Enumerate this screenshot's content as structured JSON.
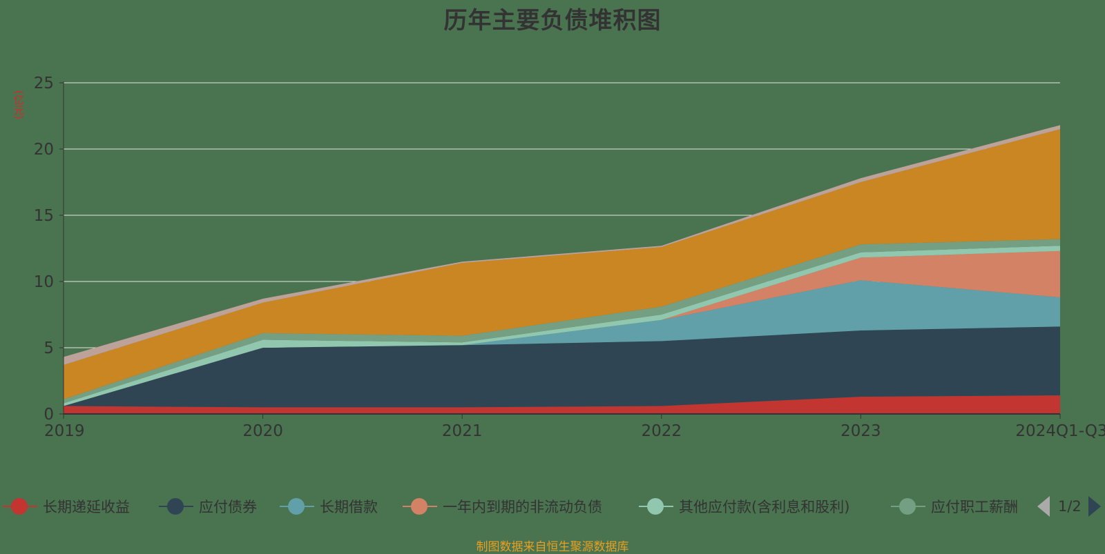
{
  "chart_data": {
    "type": "area",
    "stacked": true,
    "title": "历年主要负债堆积图",
    "ylabel": "(亿元)",
    "categories": [
      "2019",
      "2020",
      "2021",
      "2022",
      "2023",
      "2024Q1-Q3"
    ],
    "ylim": [
      0,
      25
    ],
    "yticks": [
      0,
      5,
      10,
      15,
      20,
      25
    ],
    "grid": true,
    "legend_position": "bottom",
    "series": [
      {
        "name": "长期递延收益",
        "color": "#c23531",
        "values": [
          0.6,
          0.5,
          0.5,
          0.6,
          1.3,
          1.4
        ]
      },
      {
        "name": "应付债券",
        "color": "#2f4554",
        "values": [
          0.0,
          4.5,
          4.7,
          4.9,
          5.0,
          5.2
        ]
      },
      {
        "name": "长期借款",
        "color": "#61a0a8",
        "values": [
          0.0,
          0.0,
          0.0,
          1.6,
          3.8,
          2.2
        ]
      },
      {
        "name": "一年内到期的非流动负债",
        "color": "#d48265",
        "values": [
          0.0,
          0.0,
          0.0,
          0.0,
          1.7,
          3.5
        ]
      },
      {
        "name": "其他应付款(含利息和股利)",
        "color": "#91c7ae",
        "values": [
          0.2,
          0.6,
          0.2,
          0.4,
          0.4,
          0.4
        ]
      },
      {
        "name": "应付职工薪酬",
        "color": "#749f83",
        "values": [
          0.3,
          0.5,
          0.5,
          0.6,
          0.6,
          0.5
        ]
      },
      {
        "name": "",
        "color": "#ca8622",
        "values": [
          2.6,
          2.3,
          5.5,
          4.5,
          4.7,
          8.3
        ]
      },
      {
        "name": "",
        "color": "#bda29a",
        "values": [
          0.6,
          0.3,
          0.1,
          0.1,
          0.3,
          0.3
        ]
      }
    ]
  },
  "legend": {
    "items": [
      {
        "label": "长期递延收益",
        "color": "#c23531"
      },
      {
        "label": "应付债券",
        "color": "#2f4554"
      },
      {
        "label": "长期借款",
        "color": "#61a0a8"
      },
      {
        "label": "一年内到期的非流动负债",
        "color": "#d48265"
      },
      {
        "label": "其他应付款(含利息和股利)",
        "color": "#91c7ae"
      },
      {
        "label": "应付职工薪酬",
        "color": "#749f83"
      }
    ],
    "page": "1/2"
  },
  "source": "制图数据来自恒生聚源数据库"
}
